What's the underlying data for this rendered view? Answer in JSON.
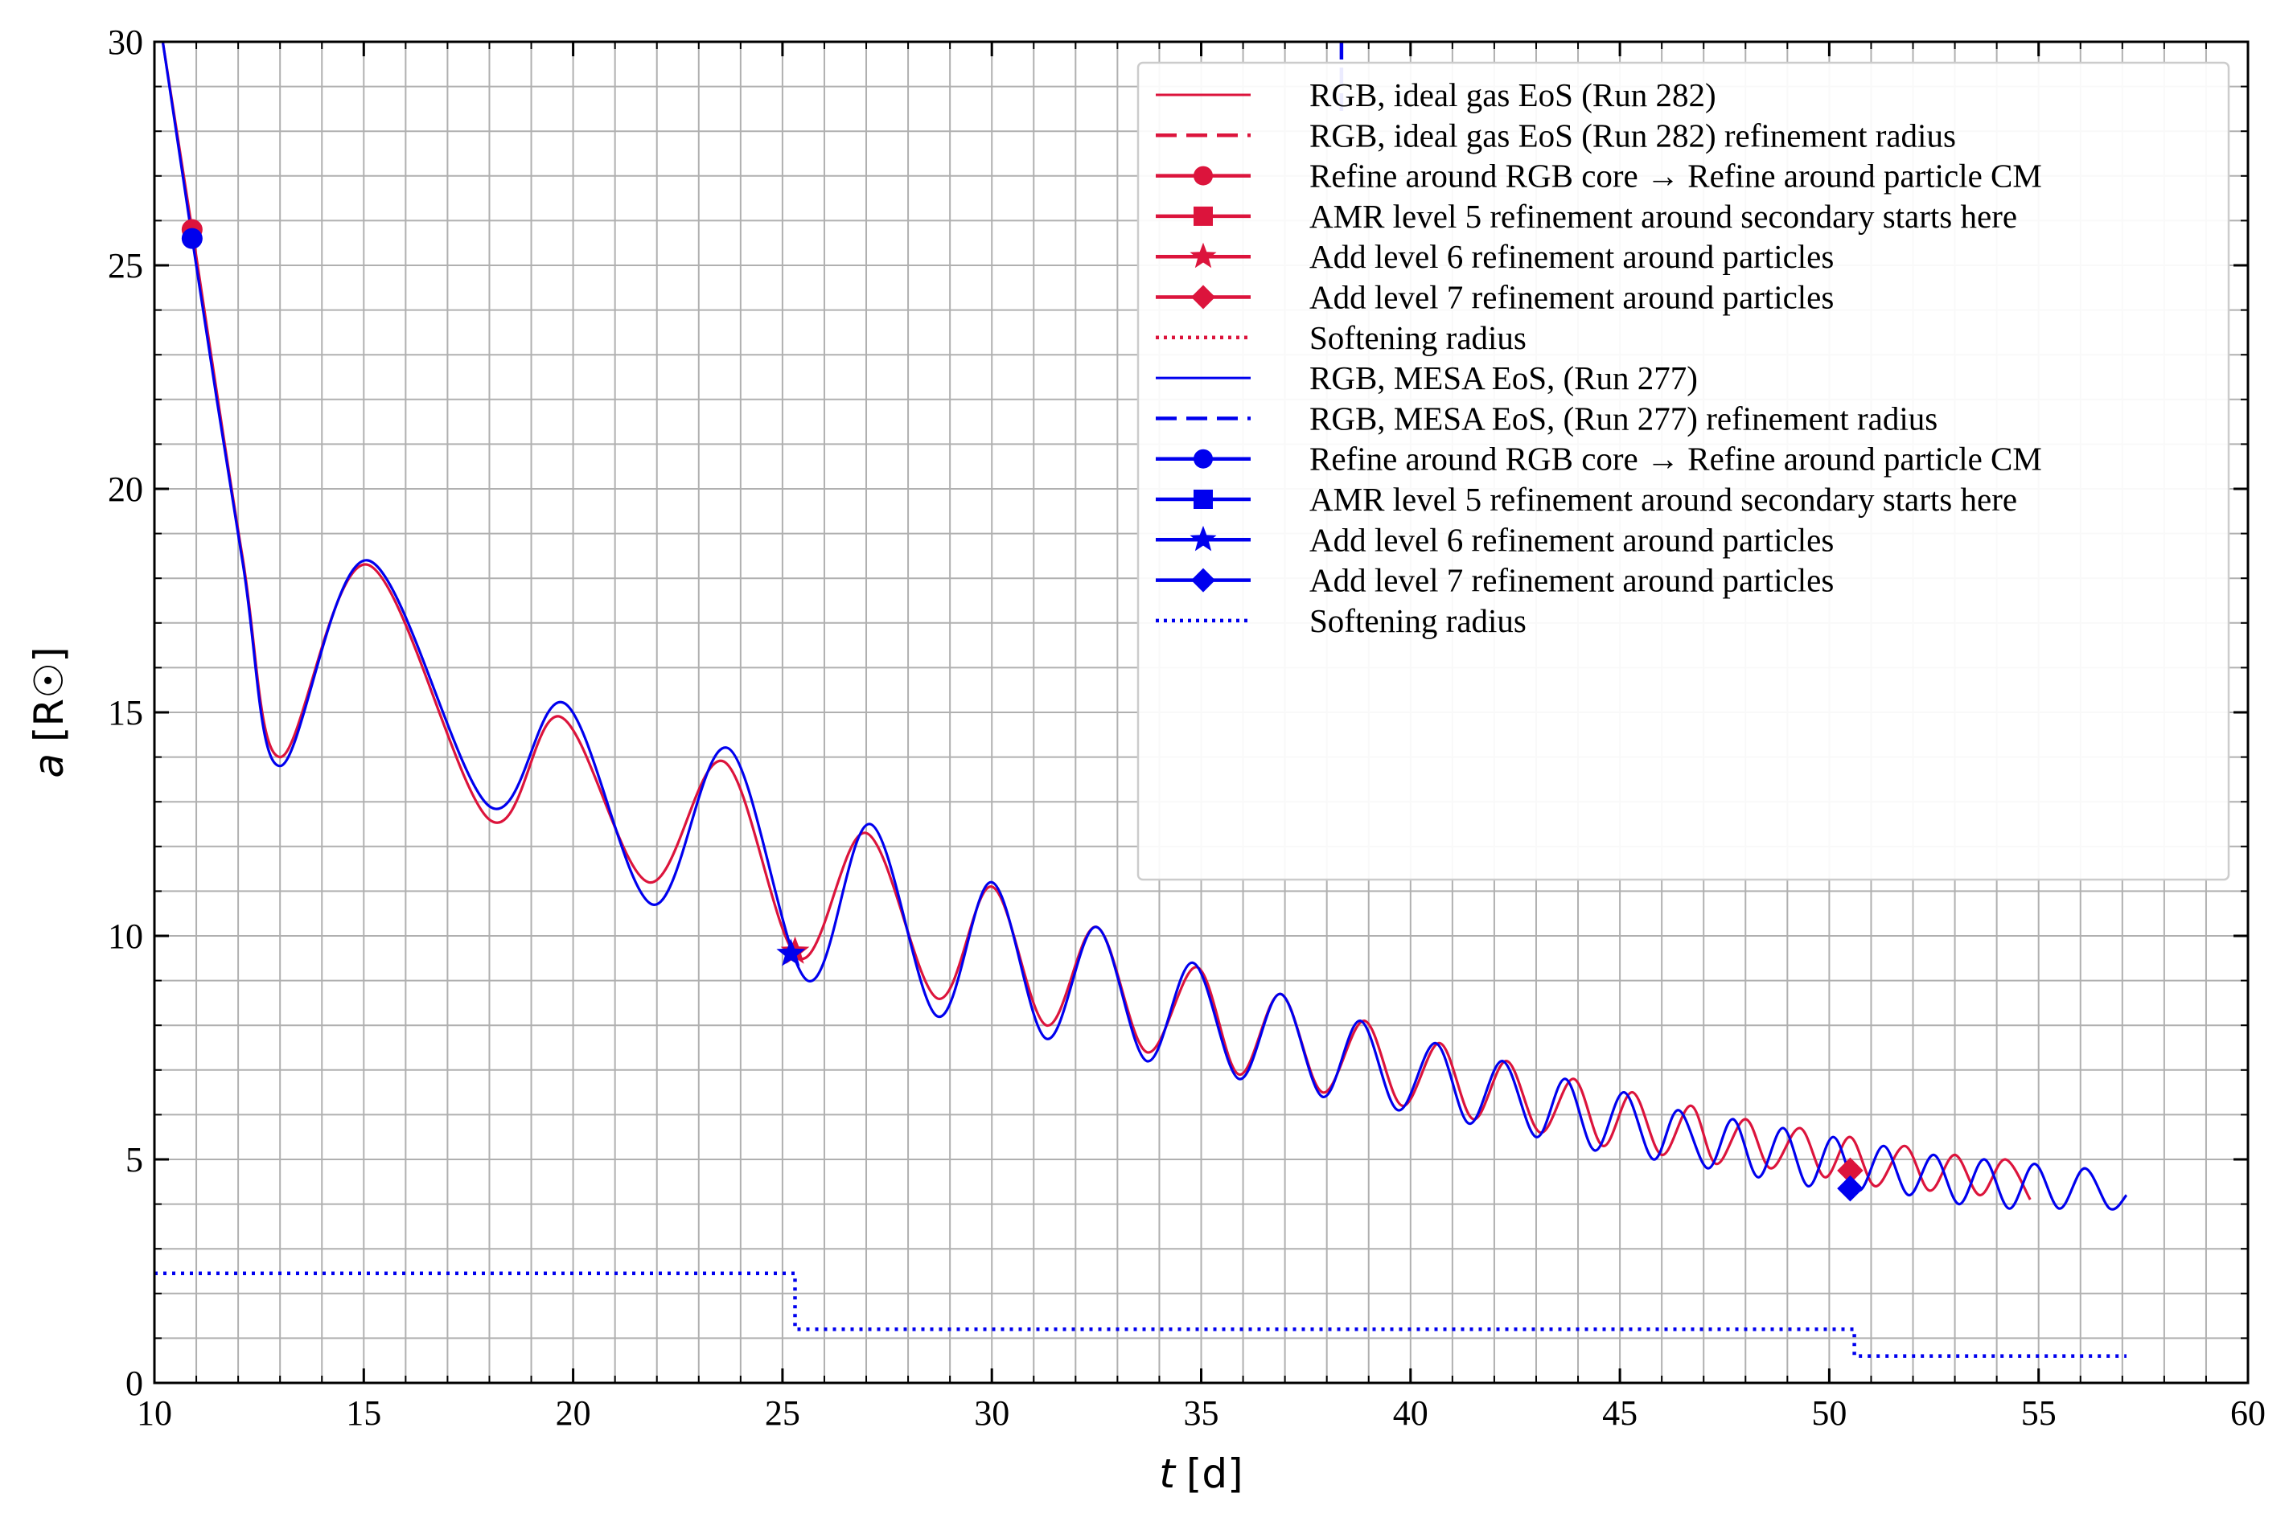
{
  "chart_data": {
    "type": "line",
    "title": "",
    "xlabel": {
      "italic": "t",
      "unit": "[d]"
    },
    "ylabel": {
      "italic": "a",
      "unit": "[R☉]"
    },
    "xlim": [
      10,
      60
    ],
    "ylim": [
      0,
      30
    ],
    "xticks": [
      10,
      15,
      20,
      25,
      30,
      35,
      40,
      45,
      50,
      55,
      60
    ],
    "yticks": [
      0,
      5,
      10,
      15,
      20,
      25,
      30
    ],
    "grid": true,
    "legend_position": "top-right",
    "colors": {
      "red": "#dc143c",
      "blue": "#0000ee"
    },
    "legend": [
      {
        "label": "RGB, ideal gas EoS (Run 282)",
        "color": "#dc143c",
        "style": "solid",
        "marker": ""
      },
      {
        "label": "RGB, ideal gas EoS (Run 282) refinement radius",
        "color": "#dc143c",
        "style": "dashed",
        "marker": ""
      },
      {
        "label": "Refine around RGB core → Refine around particle CM",
        "color": "#dc143c",
        "style": "solid",
        "marker": "circle"
      },
      {
        "label": "AMR level 5 refinement around secondary starts here",
        "color": "#dc143c",
        "style": "solid",
        "marker": "square"
      },
      {
        "label": "Add level 6 refinement around particles",
        "color": "#dc143c",
        "style": "solid",
        "marker": "star"
      },
      {
        "label": "Add level 7 refinement around particles",
        "color": "#dc143c",
        "style": "solid",
        "marker": "diamond"
      },
      {
        "label": "Softening radius",
        "color": "#dc143c",
        "style": "dotted",
        "marker": ""
      },
      {
        "label": "RGB, MESA EoS, (Run 277)",
        "color": "#0000ee",
        "style": "solid",
        "marker": ""
      },
      {
        "label": "RGB, MESA EoS, (Run 277) refinement radius",
        "color": "#0000ee",
        "style": "dashed",
        "marker": ""
      },
      {
        "label": "Refine around RGB core → Refine around particle CM",
        "color": "#0000ee",
        "style": "solid",
        "marker": "circle"
      },
      {
        "label": "AMR level 5 refinement around secondary starts here",
        "color": "#0000ee",
        "style": "solid",
        "marker": "square"
      },
      {
        "label": "Add level 6 refinement around particles",
        "color": "#0000ee",
        "style": "solid",
        "marker": "star"
      },
      {
        "label": "Add level 7 refinement around particles",
        "color": "#0000ee",
        "style": "solid",
        "marker": "diamond"
      },
      {
        "label": "Softening radius",
        "color": "#0000ee",
        "style": "dotted",
        "marker": ""
      }
    ],
    "series": [
      {
        "name": "RGB, ideal gas EoS (Run 282)",
        "color": "#dc143c",
        "x": [
          10.2,
          10.9,
          12.1,
          13.0,
          15.1,
          18.0,
          19.7,
          21.8,
          23.6,
          25.4,
          27.0,
          28.7,
          30.0,
          31.3,
          32.5,
          33.7,
          34.9,
          35.9,
          36.9,
          37.9,
          38.9,
          39.8,
          40.7,
          41.5,
          42.3,
          43.1,
          43.9,
          44.6,
          45.3,
          46.0,
          46.7,
          47.3,
          48.0,
          48.6,
          49.3,
          49.9,
          50.5,
          51.1,
          51.8,
          52.4,
          53.0,
          53.6,
          54.2,
          54.8
        ],
        "y": [
          30.0,
          25.8,
          18.5,
          14.0,
          18.3,
          12.6,
          14.9,
          11.2,
          13.9,
          9.5,
          12.3,
          8.6,
          11.1,
          8.0,
          10.2,
          7.4,
          9.3,
          6.9,
          8.7,
          6.5,
          8.1,
          6.2,
          7.6,
          5.9,
          7.2,
          5.6,
          6.8,
          5.3,
          6.5,
          5.1,
          6.2,
          4.9,
          5.9,
          4.8,
          5.7,
          4.6,
          5.5,
          4.4,
          5.3,
          4.3,
          5.1,
          4.2,
          5.0,
          4.1
        ]
      },
      {
        "name": "RGB, MESA EoS, (Run 277)",
        "color": "#0000ee",
        "x": [
          10.2,
          10.9,
          12.1,
          13.0,
          15.1,
          18.0,
          19.8,
          21.9,
          23.7,
          25.6,
          27.1,
          28.7,
          30.0,
          31.3,
          32.5,
          33.7,
          34.8,
          35.9,
          36.9,
          37.9,
          38.8,
          39.7,
          40.6,
          41.4,
          42.2,
          43.0,
          43.7,
          44.4,
          45.1,
          45.8,
          46.4,
          47.1,
          47.7,
          48.3,
          48.9,
          49.5,
          50.1,
          50.7,
          51.3,
          51.9,
          52.5,
          53.1,
          53.7,
          54.3,
          54.9,
          55.5,
          56.1,
          56.7,
          57.1
        ],
        "y": [
          30.0,
          25.6,
          18.4,
          13.8,
          18.4,
          12.9,
          15.2,
          10.7,
          14.2,
          9.0,
          12.5,
          8.2,
          11.2,
          7.7,
          10.2,
          7.2,
          9.4,
          6.8,
          8.7,
          6.4,
          8.1,
          6.1,
          7.6,
          5.8,
          7.2,
          5.5,
          6.8,
          5.2,
          6.5,
          5.0,
          6.1,
          4.8,
          5.9,
          4.6,
          5.7,
          4.4,
          5.5,
          4.3,
          5.3,
          4.2,
          5.1,
          4.0,
          5.0,
          3.9,
          4.9,
          3.9,
          4.8,
          3.9,
          4.2
        ]
      },
      {
        "name": "Softening radius (blue)",
        "color": "#0000ee",
        "style": "dotted",
        "x": [
          10.0,
          25.3,
          25.3,
          50.6,
          50.6,
          57.1
        ],
        "y": [
          2.45,
          2.45,
          1.2,
          1.2,
          0.6,
          0.6
        ]
      },
      {
        "name": "RGB, MESA EoS, (Run 277) refinement radius",
        "color": "#0000ee",
        "style": "dashed",
        "x": [
          38.35,
          38.35
        ],
        "y": [
          30.0,
          28.4
        ]
      }
    ],
    "markers": [
      {
        "series": "red",
        "marker": "circle",
        "x": 10.9,
        "y": 25.8
      },
      {
        "series": "blue",
        "marker": "circle",
        "x": 10.9,
        "y": 25.6
      },
      {
        "series": "red",
        "marker": "star",
        "x": 25.3,
        "y": 9.65
      },
      {
        "series": "blue",
        "marker": "star",
        "x": 25.2,
        "y": 9.6
      },
      {
        "series": "red",
        "marker": "diamond",
        "x": 50.5,
        "y": 4.75
      },
      {
        "series": "blue",
        "marker": "diamond",
        "x": 50.5,
        "y": 4.35
      }
    ]
  }
}
